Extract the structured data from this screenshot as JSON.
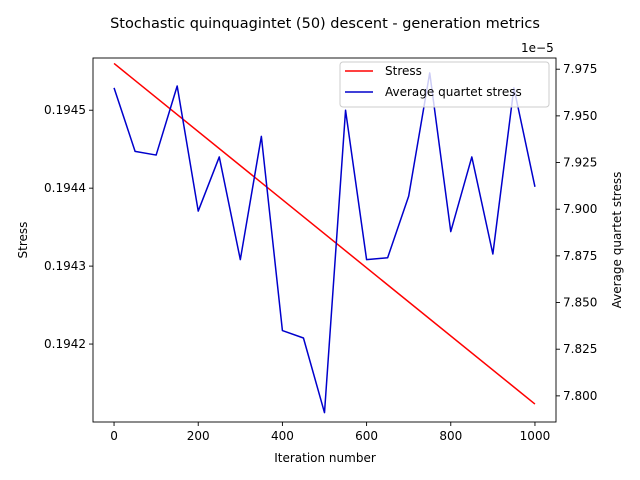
{
  "chart_data": {
    "type": "line",
    "title": "Stochastic quinquagintet (50) descent - generation metrics",
    "xlabel": "Iteration number",
    "ylabel_left": "Stress",
    "ylabel_right": "Average quartet stress",
    "right_axis_offset_text": "1e−5",
    "xlim": [
      -50,
      1050
    ],
    "ylim_left": [
      0.1941,
      0.194567
    ],
    "ylim_right": [
      7.786,
      7.981
    ],
    "x_ticks": [
      "0",
      "200",
      "400",
      "600",
      "800",
      "1000"
    ],
    "y_ticks_left": [
      "0.1942",
      "0.1943",
      "0.1944",
      "0.1945"
    ],
    "y_ticks_right": [
      "7.800",
      "7.825",
      "7.850",
      "7.875",
      "7.900",
      "7.925",
      "7.950",
      "7.975"
    ],
    "legend_position": "upper right",
    "series": [
      {
        "name": "Stress",
        "axis": "left",
        "color": "#ff0000",
        "x": [
          0,
          1000
        ],
        "values": [
          0.19456,
          0.194123
        ]
      },
      {
        "name": "Average quartet stress",
        "axis": "right",
        "color": "#0000cc",
        "x": [
          0,
          50,
          100,
          150,
          200,
          250,
          300,
          350,
          400,
          450,
          500,
          550,
          600,
          650,
          700,
          750,
          800,
          850,
          900,
          950,
          1000
        ],
        "values": [
          7.965,
          7.931,
          7.929,
          7.966,
          7.899,
          7.928,
          7.873,
          7.939,
          7.835,
          7.831,
          7.791,
          7.953,
          7.873,
          7.874,
          7.907,
          7.973,
          7.888,
          7.928,
          7.876,
          7.965,
          7.912
        ]
      }
    ]
  }
}
